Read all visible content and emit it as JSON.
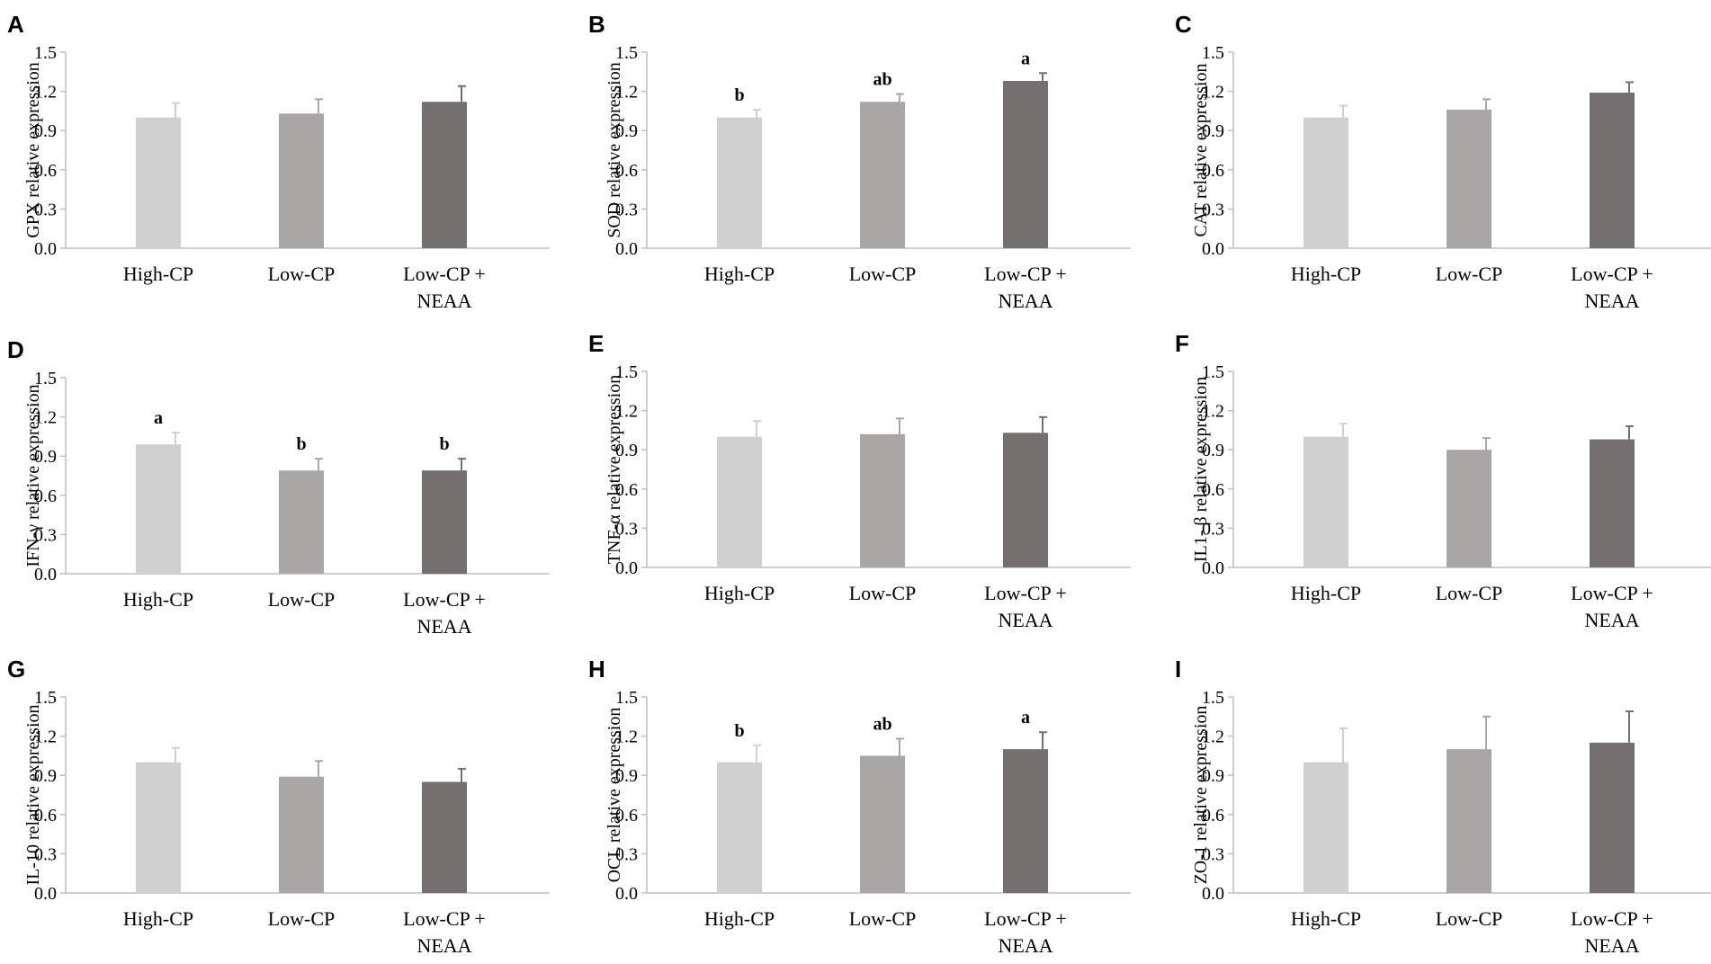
{
  "chart_data": [
    {
      "type": "bar",
      "panel": "A",
      "ylabel": "GPX relative expression",
      "categories": [
        "High-CP",
        "Low-CP",
        "Low-CP + NEAA"
      ],
      "values": [
        1.0,
        1.03,
        1.12
      ],
      "errors": [
        0.11,
        0.11,
        0.12
      ],
      "significance": [
        "",
        "",
        ""
      ],
      "ylim": [
        0,
        1.5
      ],
      "yticks": [
        "0.0",
        "0.3",
        "0.6",
        "0.9",
        "1.2",
        "1.5"
      ]
    },
    {
      "type": "bar",
      "panel": "B",
      "ylabel": "SOD relative expression",
      "categories": [
        "High-CP",
        "Low-CP",
        "Low-CP + NEAA"
      ],
      "values": [
        1.0,
        1.12,
        1.28
      ],
      "errors": [
        0.06,
        0.06,
        0.06
      ],
      "significance": [
        "b",
        "ab",
        "a"
      ],
      "ylim": [
        0,
        1.5
      ],
      "yticks": [
        "0.0",
        "0.3",
        "0.6",
        "0.9",
        "1.2",
        "1.5"
      ]
    },
    {
      "type": "bar",
      "panel": "C",
      "ylabel": "CAT relative expression",
      "categories": [
        "High-CP",
        "Low-CP",
        "Low-CP + NEAA"
      ],
      "values": [
        1.0,
        1.06,
        1.19
      ],
      "errors": [
        0.09,
        0.08,
        0.08
      ],
      "significance": [
        "",
        "",
        ""
      ],
      "ylim": [
        0,
        1.5
      ],
      "yticks": [
        "0.0",
        "0.3",
        "0.6",
        "0.9",
        "1.2",
        "1.5"
      ]
    },
    {
      "type": "bar",
      "panel": "D",
      "ylabel": "IFN-γ relative expression",
      "categories": [
        "High-CP",
        "Low-CP",
        "Low-CP + NEAA"
      ],
      "values": [
        0.99,
        0.79,
        0.79
      ],
      "errors": [
        0.09,
        0.09,
        0.09
      ],
      "significance": [
        "a",
        "b",
        "b"
      ],
      "ylim": [
        0,
        1.5
      ],
      "yticks": [
        "0.0",
        "0.3",
        "0.6",
        "0.9",
        "1.2",
        "1.5"
      ]
    },
    {
      "type": "bar",
      "panel": "E",
      "ylabel": "TNF-α relative expression",
      "categories": [
        "High-CP",
        "Low-CP",
        "Low-CP + NEAA"
      ],
      "values": [
        1.0,
        1.02,
        1.03
      ],
      "errors": [
        0.12,
        0.12,
        0.12
      ],
      "significance": [
        "",
        "",
        ""
      ],
      "ylim": [
        0,
        1.5
      ],
      "yticks": [
        "0.0",
        "0.3",
        "0.6",
        "0.9",
        "1.2",
        "1.5"
      ]
    },
    {
      "type": "bar",
      "panel": "F",
      "ylabel": "IL1- β relative expression",
      "categories": [
        "High-CP",
        "Low-CP",
        "Low-CP + NEAA"
      ],
      "values": [
        1.0,
        0.9,
        0.98
      ],
      "errors": [
        0.1,
        0.09,
        0.1
      ],
      "significance": [
        "",
        "",
        ""
      ],
      "ylim": [
        0,
        1.5
      ],
      "yticks": [
        "0.0",
        "0.3",
        "0.6",
        "0.9",
        "1.2",
        "1.5"
      ]
    },
    {
      "type": "bar",
      "panel": "G",
      "ylabel": "IL-10 relative expression",
      "categories": [
        "High-CP",
        "Low-CP",
        "Low-CP + NEAA"
      ],
      "values": [
        1.0,
        0.89,
        0.85
      ],
      "errors": [
        0.11,
        0.12,
        0.1
      ],
      "significance": [
        "",
        "",
        ""
      ],
      "ylim": [
        0,
        1.5
      ],
      "yticks": [
        "0.0",
        "0.3",
        "0.6",
        "0.9",
        "1.2",
        "1.5"
      ]
    },
    {
      "type": "bar",
      "panel": "H",
      "ylabel": "OCL relative expression",
      "categories": [
        "High-CP",
        "Low-CP",
        "Low-CP + NEAA"
      ],
      "values": [
        1.0,
        1.05,
        1.1
      ],
      "errors": [
        0.13,
        0.13,
        0.13
      ],
      "significance": [
        "b",
        "ab",
        "a"
      ],
      "ylim": [
        0,
        1.5
      ],
      "yticks": [
        "0.0",
        "0.3",
        "0.6",
        "0.9",
        "1.2",
        "1.5"
      ]
    },
    {
      "type": "bar",
      "panel": "I",
      "ylabel": "ZO-1 relative expression",
      "categories": [
        "High-CP",
        "Low-CP",
        "Low-CP + NEAA"
      ],
      "values": [
        1.0,
        1.1,
        1.15
      ],
      "errors": [
        0.26,
        0.25,
        0.24
      ],
      "significance": [
        "",
        "",
        ""
      ],
      "ylim": [
        0,
        1.5
      ],
      "yticks": [
        "0.0",
        "0.3",
        "0.6",
        "0.9",
        "1.2",
        "1.5"
      ]
    }
  ],
  "colors": {
    "bars": [
      "#d0d0d0",
      "#a9a6a6",
      "#757070"
    ],
    "axis": "#bfbfbf",
    "text": "#000000"
  }
}
